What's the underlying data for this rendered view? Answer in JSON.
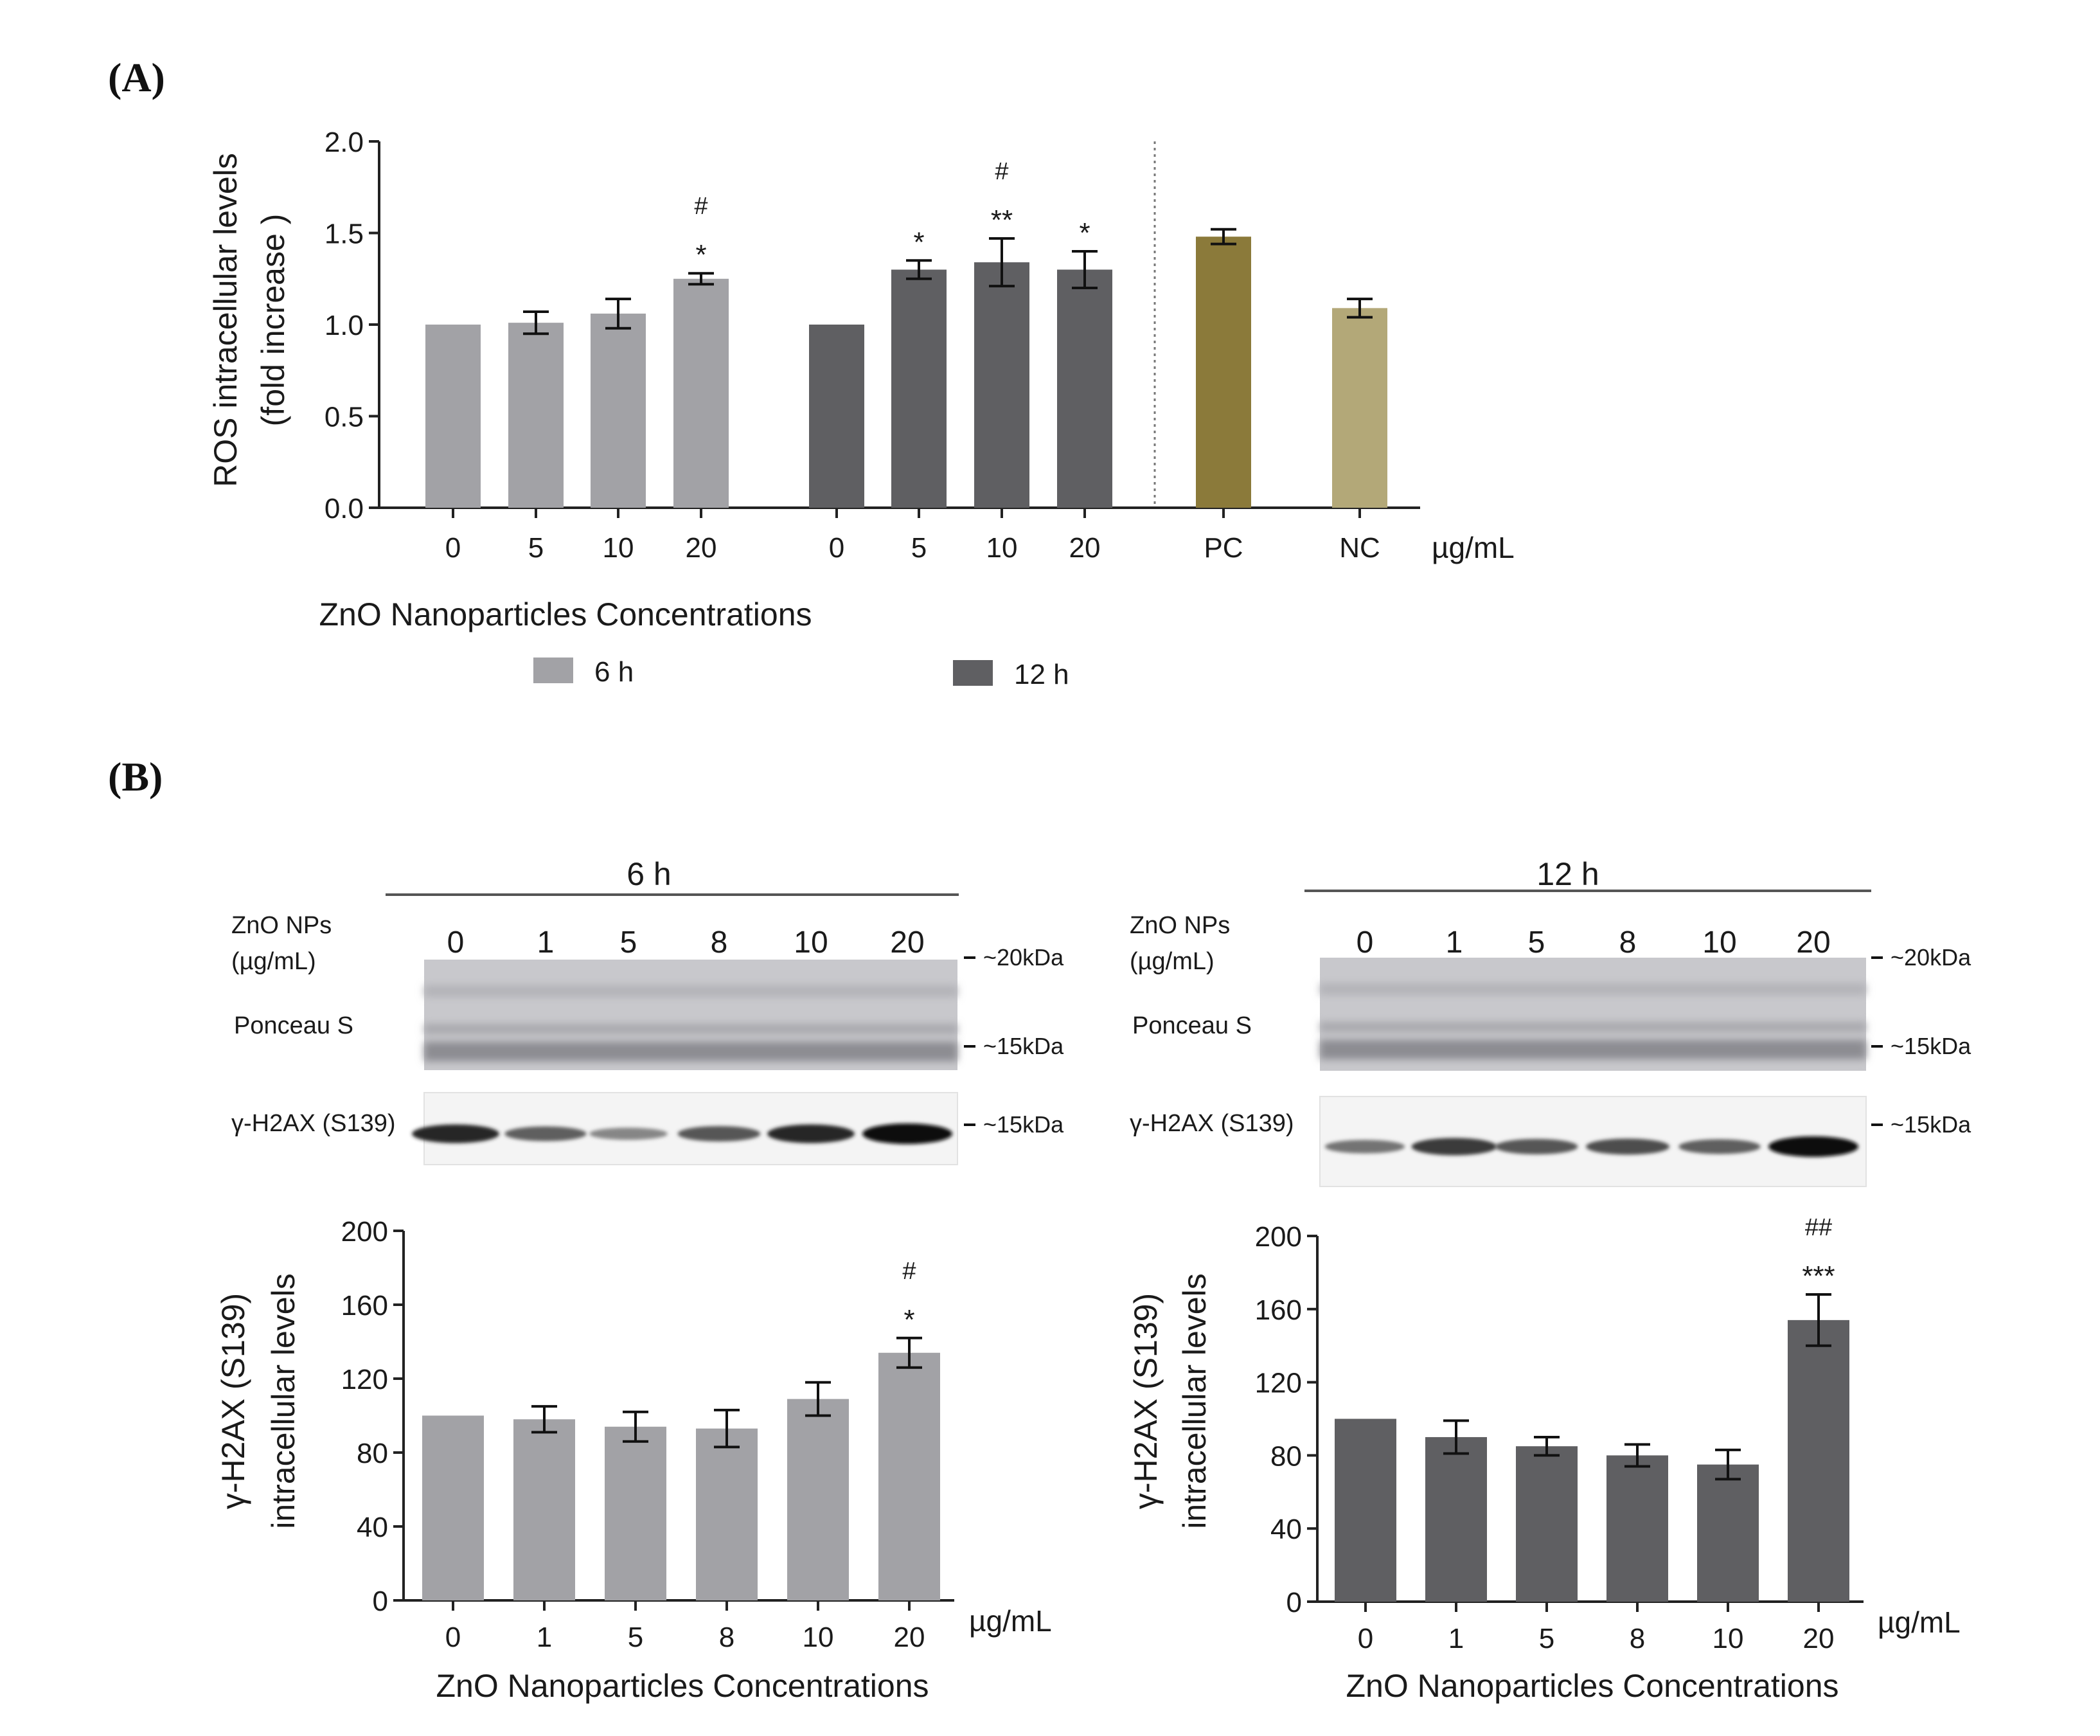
{
  "panel_labels": {
    "a": "(A)",
    "b": "(B)"
  },
  "colors": {
    "h6": "#a2a2a6",
    "h12": "#5f5f62",
    "pc": "#8b7a3a",
    "nc": "#b3a878",
    "axis": "#222222",
    "ink": "#1a1a1a"
  },
  "chart_data": [
    {
      "id": "A",
      "type": "bar",
      "title": "",
      "ylabel_lines": [
        "ROS intracellular levels",
        "(fold increase )"
      ],
      "xlabel": "ZnO Nanoparticles Concentrations",
      "unit_label": "µg/mL",
      "ylim": [
        0,
        2.0
      ],
      "yticks": [
        "0.0",
        "0.5",
        "1.0",
        "1.5",
        "2.0"
      ],
      "bars": [
        {
          "group": "6 h",
          "label": "0",
          "value": 1.0,
          "err": 0,
          "annot": []
        },
        {
          "group": "6 h",
          "label": "5",
          "value": 1.01,
          "err": 0.06,
          "annot": []
        },
        {
          "group": "6 h",
          "label": "10",
          "value": 1.06,
          "err": 0.08,
          "annot": []
        },
        {
          "group": "6 h",
          "label": "20",
          "value": 1.25,
          "err": 0.03,
          "annot": [
            "#",
            "*"
          ]
        },
        {
          "group": "12 h",
          "label": "0",
          "value": 1.0,
          "err": 0,
          "annot": []
        },
        {
          "group": "12 h",
          "label": "5",
          "value": 1.3,
          "err": 0.05,
          "annot": [
            "*"
          ]
        },
        {
          "group": "12 h",
          "label": "10",
          "value": 1.34,
          "err": 0.13,
          "annot": [
            "#",
            "**"
          ]
        },
        {
          "group": "12 h",
          "label": "20",
          "value": 1.3,
          "err": 0.1,
          "annot": [
            "*"
          ]
        },
        {
          "group": "PC",
          "label": "PC",
          "value": 1.48,
          "err": 0.04,
          "annot": []
        },
        {
          "group": "NC",
          "label": "NC",
          "value": 1.09,
          "err": 0.05,
          "annot": []
        }
      ],
      "legend": [
        {
          "name": "6 h",
          "color_key": "h6"
        },
        {
          "name": "12 h",
          "color_key": "h12"
        }
      ]
    },
    {
      "id": "B-6h",
      "type": "bar",
      "title": "",
      "ylabel_lines": [
        "γ-H2AX (S139)",
        "intracellular levels"
      ],
      "xlabel": "ZnO Nanoparticles Concentrations",
      "unit_label": "µg/mL",
      "ylim": [
        0,
        200
      ],
      "yticks": [
        "0",
        "40",
        "80",
        "120",
        "160",
        "200"
      ],
      "categories": [
        "0",
        "1",
        "5",
        "8",
        "10",
        "20"
      ],
      "values": [
        100,
        98,
        94,
        93,
        109,
        134
      ],
      "errors": [
        0,
        7,
        8,
        10,
        9,
        8
      ],
      "annotations": [
        [],
        [],
        [],
        [],
        [],
        [
          "#",
          "*"
        ]
      ]
    },
    {
      "id": "B-12h",
      "type": "bar",
      "title": "",
      "ylabel_lines": [
        "γ-H2AX (S139)",
        "intracellular levels"
      ],
      "xlabel": "ZnO Nanoparticles Concentrations",
      "unit_label": "µg/mL",
      "ylim": [
        0,
        200
      ],
      "yticks": [
        "0",
        "40",
        "80",
        "120",
        "160",
        "200"
      ],
      "categories": [
        "0",
        "1",
        "5",
        "8",
        "10",
        "20"
      ],
      "values": [
        100,
        90,
        85,
        80,
        75,
        154
      ],
      "errors": [
        0,
        9,
        5,
        6,
        8,
        14
      ],
      "annotations": [
        [],
        [],
        [],
        [],
        [],
        [
          "##",
          "***"
        ]
      ]
    }
  ],
  "blots": [
    {
      "title": "6 h",
      "zno_label": [
        "ZnO NPs",
        "(µg/mL)"
      ],
      "lanes": [
        "0",
        "1",
        "5",
        "8",
        "10",
        "20"
      ],
      "ponceau_label": "Ponceau S",
      "gamma_label": "γ-H2AX (S139)",
      "markers": [
        "~20kDa",
        "~15kDa",
        "~15kDa"
      ],
      "band_intensity": [
        0.85,
        0.55,
        0.35,
        0.6,
        0.85,
        1.0
      ]
    },
    {
      "title": "12 h",
      "zno_label": [
        "ZnO NPs",
        "(µg/mL)"
      ],
      "lanes": [
        "0",
        "1",
        "5",
        "8",
        "10",
        "20"
      ],
      "ponceau_label": "Ponceau S",
      "gamma_label": "γ-H2AX (S139)",
      "markers": [
        "~20kDa",
        "~15kDa",
        "~15kDa"
      ],
      "band_intensity": [
        0.45,
        0.75,
        0.6,
        0.65,
        0.55,
        1.0
      ]
    }
  ]
}
